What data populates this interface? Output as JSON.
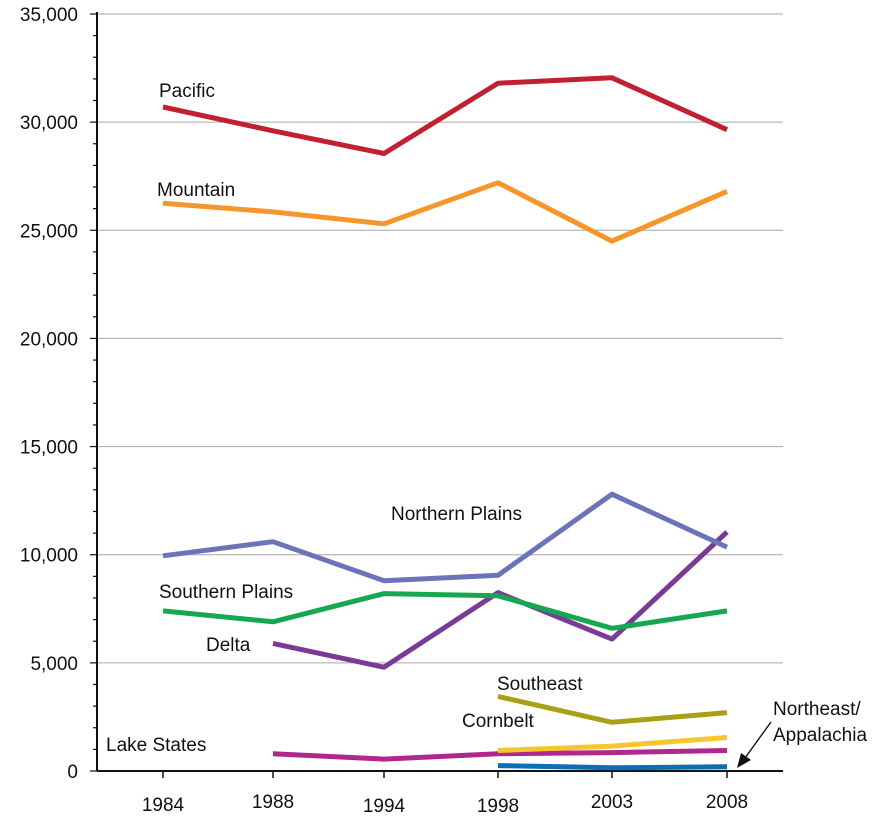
{
  "chart_data": {
    "type": "line",
    "title": "",
    "xlabel": "",
    "ylabel": "",
    "ylim": [
      0,
      35000
    ],
    "y_ticks": [
      "0",
      "5,000",
      "10,000",
      "15,000",
      "20,000",
      "25,000",
      "30,000",
      "35,000"
    ],
    "categories": [
      "1984",
      "1988",
      "1994",
      "1998",
      "2003",
      "2008"
    ],
    "grid": "horizontal",
    "legend": "inline labels",
    "series": [
      {
        "name": "Pacific",
        "color": "#c0202f",
        "values": [
          30700,
          29600,
          28550,
          31800,
          32050,
          29650
        ]
      },
      {
        "name": "Mountain",
        "color": "#f5962a",
        "values": [
          26250,
          25850,
          25300,
          27200,
          24500,
          26800
        ]
      },
      {
        "name": "Northern Plains",
        "color": "#6b74b8",
        "values": [
          9950,
          10600,
          8800,
          9050,
          12800,
          10350
        ]
      },
      {
        "name": "Southern Plains",
        "color": "#16a851",
        "values": [
          7400,
          6900,
          8200,
          8100,
          6600,
          7400
        ]
      },
      {
        "name": "Delta",
        "color": "#7a3b97",
        "values": [
          null,
          5900,
          4800,
          8250,
          6100,
          11050
        ]
      },
      {
        "name": "Southeast",
        "color": "#a8a015",
        "values": [
          null,
          null,
          null,
          3450,
          2250,
          2700
        ]
      },
      {
        "name": "Cornbelt",
        "color": "#f7c62e",
        "values": [
          null,
          null,
          null,
          950,
          1150,
          1550
        ]
      },
      {
        "name": "Lake States",
        "color": "#b0288e",
        "values": [
          null,
          800,
          550,
          800,
          850,
          950
        ]
      },
      {
        "name": "Northeast/ Appalachia",
        "color": "#0a6fb6",
        "values": [
          null,
          null,
          null,
          250,
          150,
          200
        ]
      }
    ],
    "annotations": {
      "northeast_line1": "Northeast/",
      "northeast_line2": "Appalachia"
    }
  }
}
